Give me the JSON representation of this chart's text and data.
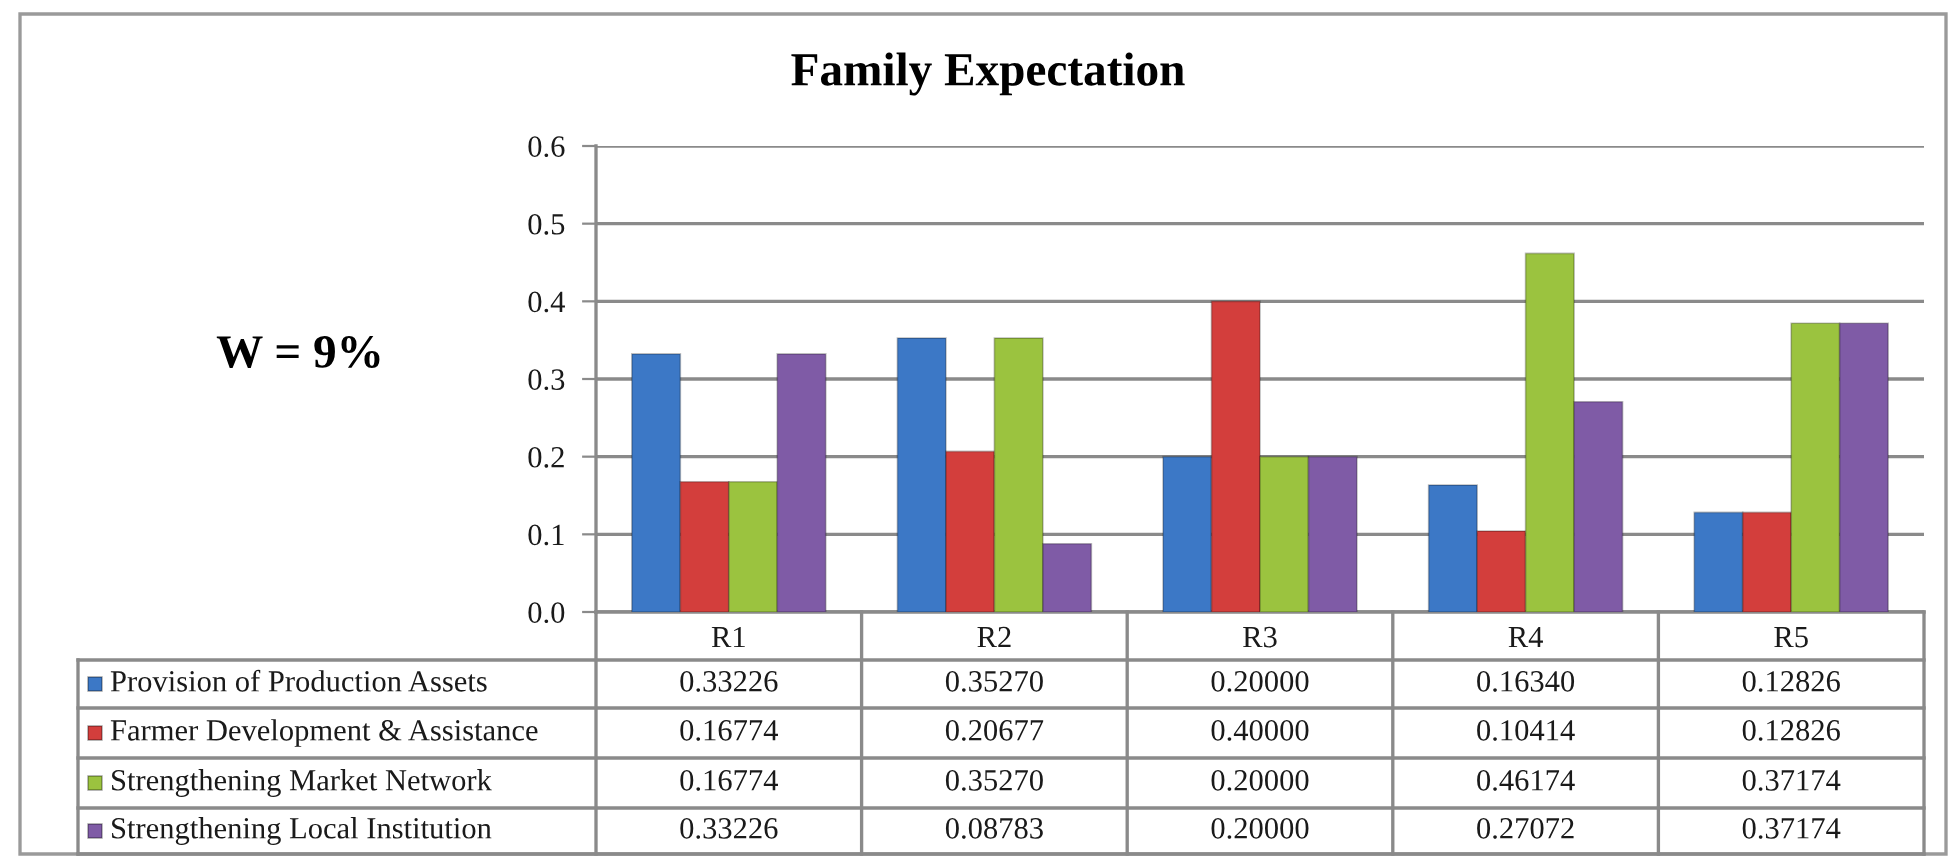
{
  "chart_data": {
    "type": "bar",
    "title": "Family Expectation",
    "annotations": [
      "W = 9%"
    ],
    "categories": [
      "R1",
      "R2",
      "R3",
      "R4",
      "R5"
    ],
    "series": [
      {
        "name": "Provision of Production Assets",
        "color": "#3c78c6",
        "values": [
          0.33226,
          0.3527,
          0.2,
          0.1634,
          0.12826
        ],
        "value_labels": [
          "0.33226",
          "0.35270",
          "0.20000",
          "0.16340",
          "0.12826"
        ]
      },
      {
        "name": "Farmer Development & Assistance",
        "color": "#d33e3c",
        "values": [
          0.16774,
          0.20677,
          0.4,
          0.10414,
          0.12826
        ],
        "value_labels": [
          "0.16774",
          "0.20677",
          "0.40000",
          "0.10414",
          "0.12826"
        ]
      },
      {
        "name": "Strengthening Market Network",
        "color": "#9bc33f",
        "values": [
          0.16774,
          0.3527,
          0.2,
          0.46174,
          0.37174
        ],
        "value_labels": [
          "0.16774",
          "0.35270",
          "0.20000",
          "0.46174",
          "0.37174"
        ]
      },
      {
        "name": "Strengthening Local Institution",
        "color": "#7f5ba6",
        "values": [
          0.33226,
          0.08783,
          0.2,
          0.27072,
          0.37174
        ],
        "value_labels": [
          "0.33226",
          "0.08783",
          "0.20000",
          "0.27072",
          "0.37174"
        ]
      }
    ],
    "ylim": [
      0,
      0.6
    ],
    "yticks": [
      {
        "value": 0,
        "label": "0.0"
      },
      0.1,
      0.2,
      0.3,
      0.4,
      0.5,
      0.6
    ],
    "grid": "y",
    "legend": "bottom"
  }
}
